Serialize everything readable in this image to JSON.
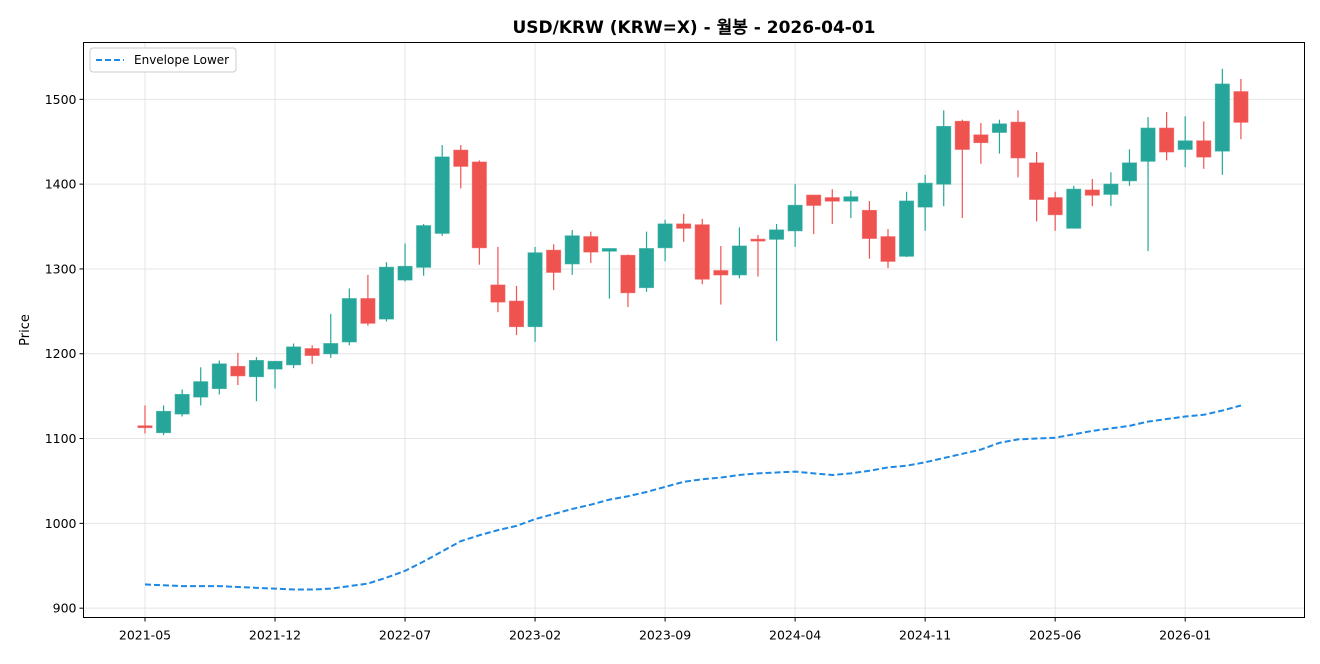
{
  "chart_data": {
    "type": "candlestick",
    "title": "USD/KRW (KRW=X) - 월봉 - 2026-04-01",
    "xlabel": "",
    "ylabel": "Price",
    "ylim": [
      889,
      1567
    ],
    "yticks": [
      900,
      1000,
      1100,
      1200,
      1300,
      1400,
      1500
    ],
    "xticks": [
      "2021-05",
      "2021-12",
      "2022-07",
      "2023-02",
      "2023-09",
      "2024-04",
      "2024-11",
      "2025-06",
      "2026-01"
    ],
    "grid": true,
    "legend_position": "top-left",
    "colors": {
      "up": "#26a69a",
      "down": "#ef5350",
      "envelope": "#1e88e5"
    },
    "dates": [
      "2021-05",
      "2021-06",
      "2021-07",
      "2021-08",
      "2021-09",
      "2021-10",
      "2021-11",
      "2021-12",
      "2022-01",
      "2022-02",
      "2022-03",
      "2022-04",
      "2022-05",
      "2022-06",
      "2022-07",
      "2022-08",
      "2022-09",
      "2022-10",
      "2022-11",
      "2022-12",
      "2023-01",
      "2023-02",
      "2023-03",
      "2023-04",
      "2023-05",
      "2023-06",
      "2023-07",
      "2023-08",
      "2023-09",
      "2023-10",
      "2023-11",
      "2023-12",
      "2024-01",
      "2024-02",
      "2024-03",
      "2024-04",
      "2024-05",
      "2024-06",
      "2024-07",
      "2024-08",
      "2024-09",
      "2024-10",
      "2024-11",
      "2024-12",
      "2025-01",
      "2025-02",
      "2025-03",
      "2025-04",
      "2025-05",
      "2025-06",
      "2025-07",
      "2025-08",
      "2025-09",
      "2025-10",
      "2025-11",
      "2025-12",
      "2026-01",
      "2026-02",
      "2026-03",
      "2026-04"
    ],
    "ohlc": [
      [
        1115,
        1139,
        1106,
        1113
      ],
      [
        1107,
        1139,
        1104,
        1132
      ],
      [
        1129,
        1158,
        1126,
        1152
      ],
      [
        1149,
        1184,
        1139,
        1167
      ],
      [
        1159,
        1192,
        1152,
        1188
      ],
      [
        1185,
        1201,
        1163,
        1174
      ],
      [
        1173,
        1196,
        1144,
        1192
      ],
      [
        1182,
        1191,
        1159,
        1191
      ],
      [
        1187,
        1212,
        1183,
        1208
      ],
      [
        1206,
        1210,
        1188,
        1198
      ],
      [
        1200,
        1247,
        1195,
        1212
      ],
      [
        1214,
        1277,
        1210,
        1265
      ],
      [
        1265,
        1293,
        1233,
        1236
      ],
      [
        1241,
        1308,
        1238,
        1302
      ],
      [
        1287,
        1330,
        1285,
        1303
      ],
      [
        1302,
        1353,
        1292,
        1351
      ],
      [
        1342,
        1446,
        1339,
        1432
      ],
      [
        1440,
        1446,
        1395,
        1421
      ],
      [
        1426,
        1428,
        1305,
        1325
      ],
      [
        1281,
        1326,
        1249,
        1261
      ],
      [
        1262,
        1280,
        1222,
        1232
      ],
      [
        1232,
        1326,
        1214,
        1319
      ],
      [
        1322,
        1329,
        1275,
        1296
      ],
      [
        1306,
        1346,
        1293,
        1339
      ],
      [
        1338,
        1344,
        1307,
        1320
      ],
      [
        1321,
        1324,
        1265,
        1324
      ],
      [
        1316,
        1317,
        1255,
        1272
      ],
      [
        1278,
        1344,
        1273,
        1324
      ],
      [
        1325,
        1358,
        1309,
        1353
      ],
      [
        1353,
        1365,
        1332,
        1348
      ],
      [
        1352,
        1359,
        1282,
        1288
      ],
      [
        1298,
        1327,
        1258,
        1293
      ],
      [
        1293,
        1349,
        1289,
        1327
      ],
      [
        1335,
        1340,
        1291,
        1333
      ],
      [
        1335,
        1353,
        1215,
        1346
      ],
      [
        1345,
        1400,
        1326,
        1375
      ],
      [
        1387,
        1387,
        1341,
        1375
      ],
      [
        1384,
        1394,
        1353,
        1380
      ],
      [
        1380,
        1392,
        1360,
        1385
      ],
      [
        1369,
        1380,
        1312,
        1336
      ],
      [
        1338,
        1347,
        1301,
        1309
      ],
      [
        1315,
        1391,
        1314,
        1380
      ],
      [
        1373,
        1411,
        1345,
        1401
      ],
      [
        1400,
        1487,
        1374,
        1468
      ],
      [
        1474,
        1476,
        1360,
        1441
      ],
      [
        1458,
        1472,
        1424,
        1449
      ],
      [
        1461,
        1476,
        1436,
        1471
      ],
      [
        1473,
        1487,
        1408,
        1431
      ],
      [
        1425,
        1438,
        1356,
        1382
      ],
      [
        1384,
        1391,
        1345,
        1364
      ],
      [
        1348,
        1398,
        1348,
        1394
      ],
      [
        1393,
        1406,
        1374,
        1387
      ],
      [
        1388,
        1414,
        1374,
        1400
      ],
      [
        1404,
        1441,
        1398,
        1425
      ],
      [
        1427,
        1479,
        1321,
        1466
      ],
      [
        1466,
        1485,
        1428,
        1438
      ],
      [
        1441,
        1480,
        1420,
        1451
      ],
      [
        1451,
        1474,
        1418,
        1432
      ],
      [
        1439,
        1536,
        1411,
        1518
      ],
      [
        1509,
        1524,
        1453,
        1473
      ]
    ],
    "series": [
      {
        "name": "Envelope Lower",
        "style": "dashed",
        "values": [
          928,
          927,
          926,
          926,
          926,
          925,
          924,
          923,
          922,
          922,
          923,
          926,
          929,
          936,
          944,
          955,
          967,
          979,
          986,
          992,
          997,
          1005,
          1011,
          1017,
          1022,
          1028,
          1032,
          1037,
          1043,
          1049,
          1052,
          1054,
          1057,
          1059,
          1060,
          1061,
          1059,
          1057,
          1059,
          1062,
          1066,
          1068,
          1072,
          1077,
          1082,
          1087,
          1095,
          1099,
          1100,
          1101,
          1105,
          1109,
          1112,
          1115,
          1120,
          1123,
          1126,
          1128,
          1133,
          1139
        ]
      }
    ]
  }
}
